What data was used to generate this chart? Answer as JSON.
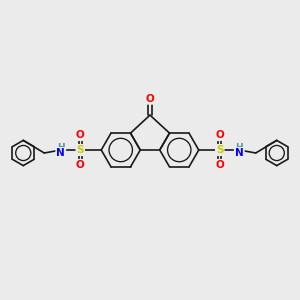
{
  "background_color": "#ebebeb",
  "bond_color": "#1a1a1a",
  "bond_width": 1.2,
  "atom_colors": {
    "O": "#ff0000",
    "N": "#0000ff",
    "S": "#cccc00",
    "H": "#4a9a9a",
    "C": "#1a1a1a"
  },
  "font_size_atoms": 7.5,
  "font_size_small": 6.5
}
